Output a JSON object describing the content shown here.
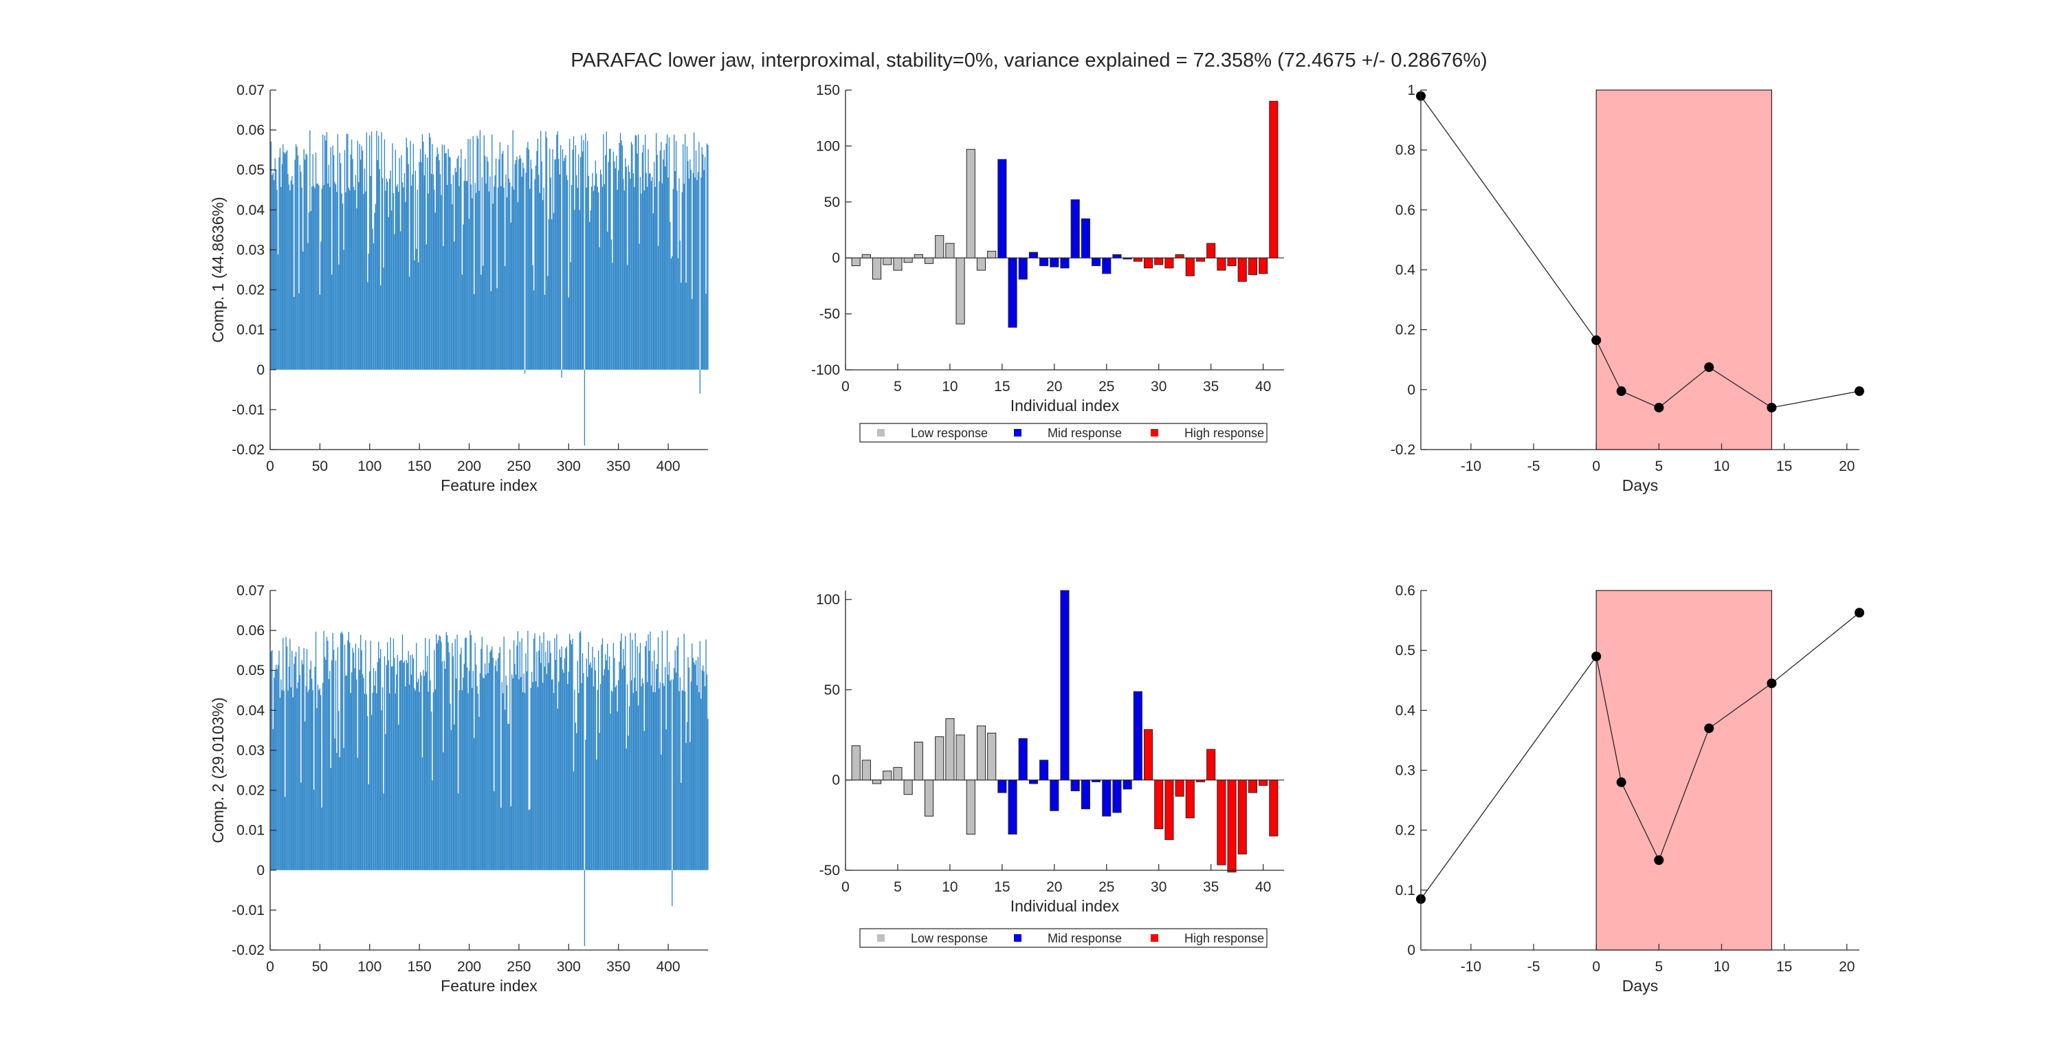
{
  "figure": {
    "title": "PARAFAC lower jaw, interproximal, stability=0%, variance explained =  72.358% (72.4675 +/- 0.28676%)"
  },
  "colors": {
    "feature_bar": "#2e86c8",
    "low_response": "#bfbfbf",
    "mid_response": "#0000e6",
    "high_response": "#ff0000",
    "shaded_region": "#ffb3b3",
    "line": "#262626",
    "axis": "#262626"
  },
  "chart_data": [
    {
      "type": "bar",
      "panel": "row1-features",
      "title": "",
      "xlabel": "Feature index",
      "ylabel": "Comp. 1 (44.8636%)",
      "xlim": [
        0,
        440
      ],
      "ylim": [
        -0.02,
        0.07
      ],
      "xticks": [
        0,
        50,
        100,
        150,
        200,
        250,
        300,
        350,
        400
      ],
      "xtick_labels": [
        "0",
        "50",
        "100",
        "150",
        "200",
        "250",
        "300",
        "350",
        "400"
      ],
      "yticks": [
        -0.02,
        -0.01,
        0,
        0.01,
        0.02,
        0.03,
        0.04,
        0.05,
        0.06,
        0.07
      ],
      "ytick_labels": [
        "-0.02",
        "-0.01",
        "0",
        "0.01",
        "0.02",
        "0.03",
        "0.04",
        "0.05",
        "0.06",
        "0.07"
      ],
      "n_features": 440,
      "typical_range": [
        0.017,
        0.06
      ],
      "notable_values": [
        {
          "x": 256,
          "y": -0.001
        },
        {
          "x": 293,
          "y": -0.002
        },
        {
          "x": 316,
          "y": -0.019
        },
        {
          "x": 432,
          "y": -0.006
        }
      ],
      "grid": false
    },
    {
      "type": "bar",
      "panel": "row1-individuals",
      "title": "",
      "xlabel": "Individual index",
      "ylabel": "",
      "xlim": [
        0,
        42
      ],
      "ylim": [
        -100,
        150
      ],
      "xticks": [
        0,
        5,
        10,
        15,
        20,
        25,
        30,
        35,
        40
      ],
      "xtick_labels": [
        "0",
        "5",
        "10",
        "15",
        "20",
        "25",
        "30",
        "35",
        "40"
      ],
      "yticks": [
        -100,
        -50,
        0,
        50,
        100,
        150
      ],
      "ytick_labels": [
        "-100",
        "-50",
        "0",
        "50",
        "100",
        "150"
      ],
      "series": [
        {
          "name": "Low response",
          "color_key": "low_response",
          "x": [
            1,
            2,
            3,
            4,
            5,
            6,
            7,
            8,
            9,
            10,
            11,
            12,
            13,
            14
          ],
          "values": [
            -7,
            3,
            -19,
            -6,
            -11,
            -4,
            3,
            -5,
            20,
            13,
            -59,
            97,
            -11,
            6
          ]
        },
        {
          "name": "Mid response",
          "color_key": "mid_response",
          "x": [
            15,
            16,
            17,
            18,
            19,
            20,
            21,
            22,
            23,
            24,
            25,
            26,
            27
          ],
          "values": [
            88,
            -62,
            -19,
            5,
            -7,
            -8,
            -9,
            52,
            35,
            -7,
            -14,
            3,
            -1
          ]
        },
        {
          "name": "High response",
          "color_key": "high_response",
          "x": [
            28,
            29,
            30,
            31,
            32,
            33,
            34,
            35,
            36,
            37,
            38,
            39,
            40,
            41
          ],
          "values": [
            -3,
            -9,
            -6,
            -9,
            3,
            -16,
            -3,
            13,
            -11,
            -7,
            -21,
            -15,
            -14,
            140
          ]
        }
      ],
      "legend": {
        "placement": "bottom",
        "entries": [
          "Low response",
          "Mid response",
          "High response"
        ]
      },
      "grid": false
    },
    {
      "type": "line",
      "panel": "row1-days",
      "title": "",
      "xlabel": "Days",
      "ylabel": "",
      "xlim": [
        -14,
        21
      ],
      "ylim": [
        -0.2,
        1
      ],
      "xticks": [
        -10,
        -5,
        0,
        5,
        10,
        15,
        20
      ],
      "xtick_labels": [
        "-10",
        "-5",
        "0",
        "5",
        "10",
        "15",
        "20"
      ],
      "yticks": [
        -0.2,
        0,
        0.2,
        0.4,
        0.6,
        0.8,
        1
      ],
      "ytick_labels": [
        "-0.2",
        "0",
        "0.2",
        "0.4",
        "0.6",
        "0.8",
        "1"
      ],
      "shaded_region": {
        "x": [
          0,
          14
        ]
      },
      "x": [
        -14,
        0,
        2,
        5,
        9,
        14,
        21
      ],
      "y": [
        0.98,
        0.165,
        -0.005,
        -0.06,
        0.075,
        -0.06,
        -0.005
      ],
      "grid": false
    },
    {
      "type": "bar",
      "panel": "row2-features",
      "title": "",
      "xlabel": "Feature index",
      "ylabel": "Comp. 2 (29.0103%)",
      "xlim": [
        0,
        440
      ],
      "ylim": [
        -0.02,
        0.07
      ],
      "xticks": [
        0,
        50,
        100,
        150,
        200,
        250,
        300,
        350,
        400
      ],
      "xtick_labels": [
        "0",
        "50",
        "100",
        "150",
        "200",
        "250",
        "300",
        "350",
        "400"
      ],
      "yticks": [
        -0.02,
        -0.01,
        0,
        0.01,
        0.02,
        0.03,
        0.04,
        0.05,
        0.06,
        0.07
      ],
      "ytick_labels": [
        "-0.02",
        "-0.01",
        "0",
        "0.01",
        "0.02",
        "0.03",
        "0.04",
        "0.05",
        "0.06",
        "0.07"
      ],
      "n_features": 440,
      "typical_range": [
        0.015,
        0.06
      ],
      "notable_values": [
        {
          "x": 316,
          "y": -0.019
        },
        {
          "x": 404,
          "y": -0.009
        }
      ],
      "grid": false
    },
    {
      "type": "bar",
      "panel": "row2-individuals",
      "title": "",
      "xlabel": "Individual index",
      "ylabel": "",
      "xlim": [
        0,
        42
      ],
      "ylim": [
        -50,
        105
      ],
      "xticks": [
        0,
        5,
        10,
        15,
        20,
        25,
        30,
        35,
        40
      ],
      "xtick_labels": [
        "0",
        "5",
        "10",
        "15",
        "20",
        "25",
        "30",
        "35",
        "40"
      ],
      "yticks": [
        -50,
        0,
        50,
        100
      ],
      "ytick_labels": [
        "-50",
        "0",
        "50",
        "100"
      ],
      "series": [
        {
          "name": "Low response",
          "color_key": "low_response",
          "x": [
            1,
            2,
            3,
            4,
            5,
            6,
            7,
            8,
            9,
            10,
            11,
            12,
            13,
            14
          ],
          "values": [
            19,
            11,
            -2,
            5,
            7,
            -8,
            21,
            -20,
            24,
            34,
            25,
            -30,
            30,
            26
          ]
        },
        {
          "name": "Mid response",
          "color_key": "mid_response",
          "x": [
            15,
            16,
            17,
            18,
            19,
            20,
            21,
            22,
            23,
            24,
            25,
            26,
            27,
            28
          ],
          "values": [
            -7,
            -30,
            23,
            -2,
            11,
            -17,
            105,
            -6,
            -16,
            -1,
            -20,
            -18,
            -5,
            49
          ]
        },
        {
          "name": "High response",
          "color_key": "high_response",
          "x": [
            29,
            30,
            31,
            32,
            33,
            34,
            35,
            36,
            37,
            38,
            39,
            40,
            41
          ],
          "values": [
            28,
            -27,
            -33,
            -9,
            -21,
            -1,
            17,
            -47,
            -51,
            -41,
            -7,
            -3,
            -31
          ]
        }
      ],
      "legend": {
        "placement": "bottom",
        "entries": [
          "Low response",
          "Mid response",
          "High response"
        ]
      },
      "grid": false
    },
    {
      "type": "line",
      "panel": "row2-days",
      "title": "",
      "xlabel": "Days",
      "ylabel": "",
      "xlim": [
        -14,
        21
      ],
      "ylim": [
        0,
        0.6
      ],
      "xticks": [
        -10,
        -5,
        0,
        5,
        10,
        15,
        20
      ],
      "xtick_labels": [
        "-10",
        "-5",
        "0",
        "5",
        "10",
        "15",
        "20"
      ],
      "yticks": [
        0,
        0.1,
        0.2,
        0.3,
        0.4,
        0.5,
        0.6
      ],
      "ytick_labels": [
        "0",
        "0.1",
        "0.2",
        "0.3",
        "0.4",
        "0.5",
        "0.6"
      ],
      "shaded_region": {
        "x": [
          0,
          14
        ]
      },
      "x": [
        -14,
        0,
        2,
        5,
        9,
        14,
        21
      ],
      "y": [
        0.085,
        0.49,
        0.28,
        0.15,
        0.37,
        0.445,
        0.563
      ],
      "grid": false
    }
  ]
}
